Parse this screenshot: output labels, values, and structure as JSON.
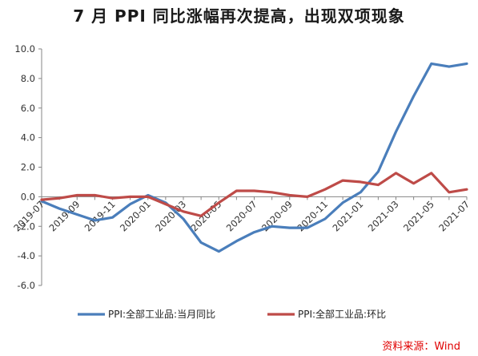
{
  "title": "7 月 PPI 同比涨幅再次提高，出现双项现象",
  "source": "资料来源：Wind",
  "chart_data": {
    "type": "line",
    "x": [
      "2019-07",
      "2019-08",
      "2019-09",
      "2019-10",
      "2019-11",
      "2019-12",
      "2020-01",
      "2020-02",
      "2020-03",
      "2020-04",
      "2020-05",
      "2020-06",
      "2020-07",
      "2020-08",
      "2020-09",
      "2020-10",
      "2020-11",
      "2020-12",
      "2021-01",
      "2021-02",
      "2021-03",
      "2021-04",
      "2021-05",
      "2021-06",
      "2021-07"
    ],
    "x_tick_labels": [
      "2019-07",
      "2019-09",
      "2019-11",
      "2020-01",
      "2020-03",
      "2020-05",
      "2020-07",
      "2020-09",
      "2020-11",
      "2021-01",
      "2021-03",
      "2021-05",
      "2021-07"
    ],
    "y_tick_labels": [
      "10.0",
      "8.0",
      "6.0",
      "4.0",
      "2.0",
      "0.0",
      "-2.0",
      "-4.0",
      "-6.0"
    ],
    "ylim": [
      -6,
      10
    ],
    "grid": false,
    "legend_position": "bottom",
    "series": [
      {
        "name": "PPI:全部工业品:当月同比",
        "color": "#4a7ebb",
        "values": [
          -0.3,
          -0.8,
          -1.2,
          -1.6,
          -1.4,
          -0.5,
          0.1,
          -0.4,
          -1.5,
          -3.1,
          -3.7,
          -3.0,
          -2.4,
          -2.0,
          -2.1,
          -2.1,
          -1.5,
          -0.4,
          0.3,
          1.7,
          4.4,
          6.8,
          9.0,
          8.8,
          9.0
        ]
      },
      {
        "name": "PPI:全部工业品:环比",
        "color": "#be4b48",
        "values": [
          -0.2,
          -0.1,
          0.1,
          0.1,
          -0.1,
          0.0,
          0.0,
          -0.5,
          -1.0,
          -1.3,
          -0.4,
          0.4,
          0.4,
          0.3,
          0.1,
          0.0,
          0.5,
          1.1,
          1.0,
          0.8,
          1.6,
          0.9,
          1.6,
          0.3,
          0.5
        ]
      }
    ]
  }
}
